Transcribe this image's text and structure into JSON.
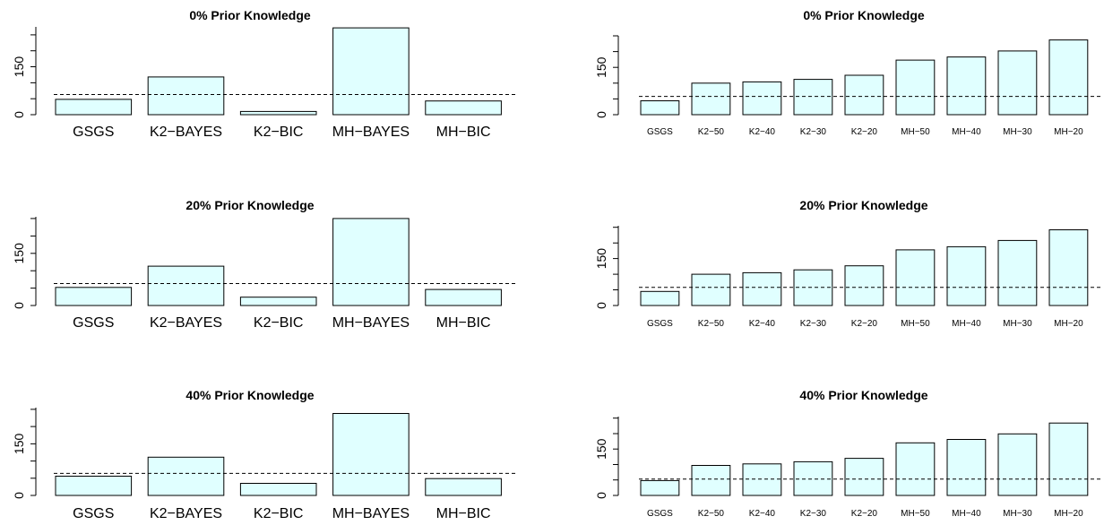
{
  "chart_data": [
    {
      "type": "bar",
      "title": "0% Prior Knowledge",
      "categories": [
        "GSGS",
        "K2−BAYES",
        "K2−BIC",
        "MH−BAYES",
        "MH−BIC"
      ],
      "values": [
        48,
        118,
        10,
        272,
        43
      ],
      "reference_line": 63,
      "ylim": [
        0,
        275
      ],
      "yticks": [
        "0",
        "150"
      ],
      "grid": false
    },
    {
      "type": "bar",
      "title": "0% Prior Knowledge",
      "categories": [
        "GSGS",
        "K2−50",
        "K2−40",
        "K2−30",
        "K2−20",
        "MH−50",
        "MH−40",
        "MH−30",
        "MH−20"
      ],
      "values": [
        44,
        100,
        104,
        112,
        125,
        173,
        183,
        202,
        237
      ],
      "reference_line": 58,
      "ylim": [
        0,
        250
      ],
      "yticks": [
        "0",
        "150"
      ],
      "grid": false
    },
    {
      "type": "bar",
      "title": "20% Prior Knowledge",
      "categories": [
        "GSGS",
        "K2−BAYES",
        "K2−BIC",
        "MH−BAYES",
        "MH−BIC"
      ],
      "values": [
        52,
        113,
        24,
        250,
        46
      ],
      "reference_line": 63,
      "ylim": [
        0,
        255
      ],
      "yticks": [
        "0",
        "150"
      ],
      "grid": false
    },
    {
      "type": "bar",
      "title": "20% Prior Knowledge",
      "categories": [
        "GSGS",
        "K2−50",
        "K2−40",
        "K2−30",
        "K2−20",
        "MH−50",
        "MH−40",
        "MH−30",
        "MH−20"
      ],
      "values": [
        45,
        100,
        105,
        114,
        127,
        178,
        188,
        208,
        242
      ],
      "reference_line": 58,
      "ylim": [
        0,
        255
      ],
      "yticks": [
        "0",
        "150"
      ],
      "grid": false
    },
    {
      "type": "bar",
      "title": "40% Prior Knowledge",
      "categories": [
        "GSGS",
        "K2−BAYES",
        "K2−BIC",
        "MH−BAYES",
        "MH−BIC"
      ],
      "values": [
        56,
        111,
        35,
        238,
        49
      ],
      "reference_line": 64,
      "ylim": [
        0,
        255
      ],
      "yticks": [
        "0",
        "150"
      ],
      "grid": false
    },
    {
      "type": "bar",
      "title": "40% Prior Knowledge",
      "categories": [
        "GSGS",
        "K2−50",
        "K2−40",
        "K2−30",
        "K2−20",
        "MH−50",
        "MH−40",
        "MH−30",
        "MH−20"
      ],
      "values": [
        48,
        97,
        102,
        109,
        120,
        170,
        181,
        199,
        234
      ],
      "reference_line": 53,
      "ylim": [
        0,
        255
      ],
      "yticks": [
        "0",
        "150"
      ],
      "grid": false
    }
  ]
}
